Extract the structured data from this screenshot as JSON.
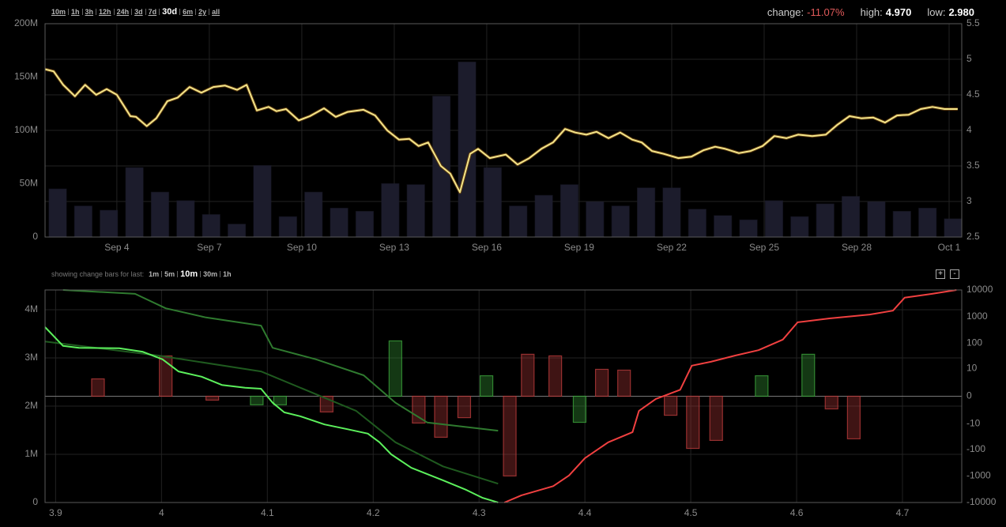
{
  "toolbar": {
    "ranges": [
      "10m",
      "1h",
      "3h",
      "12h",
      "24h",
      "3d",
      "7d",
      "30d",
      "6m",
      "2y",
      "all"
    ],
    "active": "30d"
  },
  "stats": {
    "change_label": "change:",
    "change": "-11.07%",
    "high_label": "high:",
    "high": "4.970",
    "low_label": "low:",
    "low": "2.980"
  },
  "change_bar_controls": {
    "label": "showing change bars for last:",
    "options": [
      "1m",
      "5m",
      "10m",
      "30m",
      "1h"
    ],
    "active": "10m",
    "zoom_in": "+",
    "zoom_out": "-"
  },
  "chart_data": [
    {
      "type": "price-volume",
      "xlim": [
        1.67,
        31.41
      ],
      "xticks": [
        {
          "value": 4,
          "label": "Sep 4"
        },
        {
          "value": 7,
          "label": "Sep 7"
        },
        {
          "value": 10,
          "label": "Sep 10"
        },
        {
          "value": 13,
          "label": "Sep 13"
        },
        {
          "value": 16,
          "label": "Sep 16"
        },
        {
          "value": 19,
          "label": "Sep 19"
        },
        {
          "value": 22,
          "label": "Sep 22"
        },
        {
          "value": 25,
          "label": "Sep 25"
        },
        {
          "value": 28,
          "label": "Sep 28"
        },
        {
          "value": 31,
          "label": "Oct 1"
        }
      ],
      "ylim": [
        0,
        200000000
      ],
      "yticks": [
        0,
        {
          "value": 50000000,
          "label": "50M"
        },
        {
          "value": 100000000,
          "label": "100M"
        },
        {
          "value": 150000000,
          "label": "150M"
        },
        {
          "value": 200000000,
          "label": "200M"
        }
      ],
      "y2lim": [
        2.5,
        5.5
      ],
      "y2ticks": [
        2.5,
        3,
        3.5,
        4,
        4.5,
        5,
        5.5
      ],
      "grid": "y2",
      "series": [
        {
          "kind": "bar",
          "color": "#1c1c2c",
          "x": [
            2.08,
            2.91,
            3.74,
            4.57,
            5.4,
            6.23,
            7.06,
            7.89,
            8.72,
            9.55,
            10.38,
            11.21,
            12.04,
            12.87,
            13.7,
            14.53,
            15.36,
            16.19,
            17.02,
            17.85,
            18.68,
            19.51,
            20.34,
            21.17,
            22.0,
            22.83,
            23.66,
            24.49,
            25.32,
            26.15,
            26.98,
            27.81,
            28.64,
            29.47,
            30.3,
            31.13
          ],
          "values": [
            45000000,
            29000000,
            25000000,
            65000000,
            42000000,
            34000000,
            21000000,
            12000000,
            67000000,
            19000000,
            42000000,
            27000000,
            24000000,
            50000000,
            49000000,
            132000000,
            164000000,
            65000000,
            29000000,
            39000000,
            49000000,
            33000000,
            29000000,
            46000000,
            46000000,
            26000000,
            20000000,
            16000000,
            34000000,
            19000000,
            31000000,
            38000000,
            33000000,
            24000000,
            27000000,
            17000000
          ]
        },
        {
          "kind": "line",
          "axis": "y2",
          "color": "#f3e58a",
          "x": [
            1.67,
            1.95,
            2.26,
            2.64,
            2.97,
            3.33,
            3.67,
            4.0,
            4.44,
            4.62,
            4.97,
            5.28,
            5.64,
            5.97,
            6.36,
            6.74,
            7.13,
            7.51,
            7.9,
            8.21,
            8.54,
            8.92,
            9.18,
            9.49,
            9.9,
            10.26,
            10.72,
            11.1,
            11.49,
            12.0,
            12.38,
            12.77,
            13.15,
            13.49,
            13.79,
            14.1,
            14.51,
            14.82,
            15.13,
            15.46,
            15.72,
            16.1,
            16.62,
            17.0,
            17.38,
            17.77,
            18.15,
            18.54,
            18.87,
            19.23,
            19.56,
            19.95,
            20.33,
            20.72,
            21.03,
            21.36,
            21.74,
            22.21,
            22.64,
            23.03,
            23.41,
            23.74,
            24.18,
            24.56,
            24.95,
            25.33,
            25.72,
            26.1,
            26.56,
            27.0,
            27.38,
            27.77,
            28.15,
            28.54,
            28.92,
            29.31,
            29.69,
            30.08,
            30.46,
            30.85,
            31.28
          ],
          "values": [
            4.86,
            4.83,
            4.64,
            4.48,
            4.64,
            4.5,
            4.58,
            4.5,
            4.2,
            4.19,
            4.06,
            4.17,
            4.41,
            4.46,
            4.61,
            4.53,
            4.61,
            4.63,
            4.57,
            4.64,
            4.28,
            4.33,
            4.27,
            4.3,
            4.14,
            4.2,
            4.31,
            4.19,
            4.26,
            4.29,
            4.21,
            4.0,
            3.87,
            3.88,
            3.78,
            3.83,
            3.5,
            3.39,
            3.13,
            3.67,
            3.74,
            3.61,
            3.66,
            3.52,
            3.61,
            3.74,
            3.83,
            4.02,
            3.97,
            3.94,
            3.98,
            3.89,
            3.97,
            3.87,
            3.83,
            3.71,
            3.67,
            3.61,
            3.63,
            3.72,
            3.77,
            3.74,
            3.68,
            3.71,
            3.78,
            3.92,
            3.89,
            3.94,
            3.92,
            3.94,
            4.08,
            4.2,
            4.17,
            4.18,
            4.11,
            4.21,
            4.22,
            4.3,
            4.33,
            4.3,
            4.3
          ]
        }
      ]
    },
    {
      "type": "depth",
      "xlim": [
        3.89,
        4.756
      ],
      "xticks": [
        3.9,
        4,
        4.1,
        4.2,
        4.3,
        4.4,
        4.5,
        4.6,
        4.7
      ],
      "ylim": [
        0,
        4410000
      ],
      "yticks": [
        0,
        {
          "value": 1000000,
          "label": "1M"
        },
        {
          "value": 2000000,
          "label": "2M"
        },
        {
          "value": 3000000,
          "label": "3M"
        },
        {
          "value": 4000000,
          "label": "4M"
        }
      ],
      "y2lim": [
        -10000,
        10000
      ],
      "y2ticks": [
        -10000,
        -1000,
        -100,
        -10,
        0,
        10,
        100,
        1000,
        10000
      ],
      "y2scale": "symlog",
      "grid": "y",
      "zero_line": true,
      "series": [
        {
          "kind": "bar",
          "axis": "y2",
          "color": "#b53a3a",
          "x": [
            3.94,
            4.004,
            4.048,
            4.156,
            4.243,
            4.264,
            4.286,
            4.329,
            4.346,
            4.372,
            4.416,
            4.437,
            4.481,
            4.502,
            4.524,
            4.633,
            4.654
          ],
          "values": [
            3.5,
            32,
            -0.4,
            -2.9,
            -9.2,
            -34,
            -5.4,
            -1000,
            37,
            32,
            9.3,
            8.6,
            -4.2,
            -91,
            -45,
            -2.0,
            -39
          ]
        },
        {
          "kind": "bar",
          "axis": "y2",
          "color": "#3aa03a",
          "x": [
            4.09,
            4.112,
            4.221,
            4.307,
            4.395,
            4.567,
            4.611
          ],
          "values": [
            -1.1,
            -1.1,
            120,
            4.9,
            -8.6,
            4.9,
            37
          ]
        },
        {
          "kind": "line",
          "color": "#2f7a2f",
          "x": [
            3.907,
            3.975,
            4.004,
            4.042,
            4.094,
            4.105,
            4.146,
            4.191,
            4.221,
            4.251,
            4.318
          ],
          "values": [
            4410000,
            4330000,
            4030000,
            3840000,
            3670000,
            3210000,
            2970000,
            2640000,
            2070000,
            1660000,
            1490000
          ]
        },
        {
          "kind": "line",
          "color": "#1f5a1f",
          "x": [
            3.89,
            3.997,
            4.094,
            4.184,
            4.221,
            4.266,
            4.318
          ],
          "values": [
            3340000,
            3050000,
            2720000,
            1900000,
            1250000,
            750000,
            390000
          ]
        },
        {
          "kind": "line",
          "color": "#5cf05c",
          "x": [
            3.89,
            3.907,
            3.922,
            3.96,
            3.982,
            4.001,
            4.016,
            4.038,
            4.057,
            4.079,
            4.094,
            4.105,
            4.116,
            4.131,
            4.154,
            4.176,
            4.195,
            4.206,
            4.217,
            4.236,
            4.266,
            4.288,
            4.303,
            4.318
          ],
          "values": [
            3640000,
            3250000,
            3210000,
            3200000,
            3130000,
            2970000,
            2720000,
            2610000,
            2440000,
            2380000,
            2360000,
            2070000,
            1870000,
            1790000,
            1620000,
            1520000,
            1430000,
            1250000,
            1000000,
            720000,
            460000,
            260000,
            100000,
            0
          ]
        },
        {
          "kind": "line",
          "color": "#f04040",
          "x": [
            4.324,
            4.34,
            4.37,
            4.385,
            4.4,
            4.422,
            4.445,
            4.451,
            4.467,
            4.49,
            4.501,
            4.519,
            4.542,
            4.564,
            4.587,
            4.601,
            4.631,
            4.669,
            4.691,
            4.702,
            4.728,
            4.751
          ],
          "values": [
            0,
            150000,
            340000,
            560000,
            920000,
            1250000,
            1460000,
            1900000,
            2150000,
            2340000,
            2840000,
            2920000,
            3050000,
            3160000,
            3380000,
            3740000,
            3820000,
            3900000,
            3980000,
            4250000,
            4330000,
            4410000
          ]
        }
      ]
    }
  ]
}
